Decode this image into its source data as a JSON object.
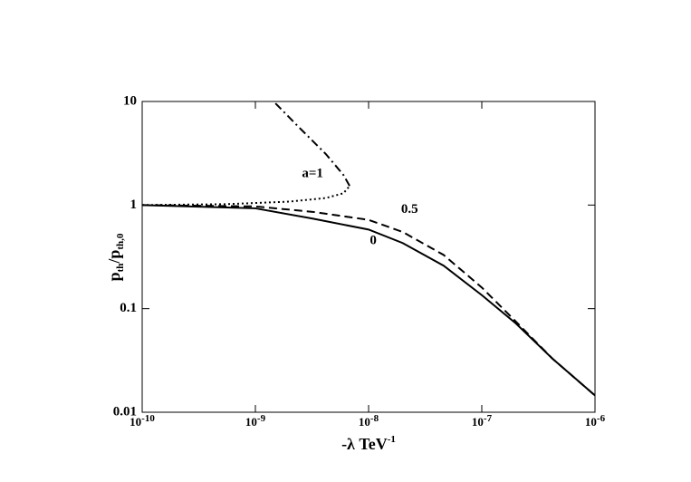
{
  "chart_data": {
    "type": "line",
    "xscale": "log",
    "yscale": "log",
    "xlabel": {
      "text": "-λ TeV",
      "exp": "-1"
    },
    "ylabel": {
      "parts": [
        "p",
        "th",
        "/p",
        "th,0"
      ]
    },
    "xlim": [
      1e-10,
      1e-06
    ],
    "xticks": [
      {
        "value": 1e-10,
        "label": "10",
        "exp": "-10"
      },
      {
        "value": 1e-09,
        "label": "10",
        "exp": "-9"
      },
      {
        "value": 1e-08,
        "label": "10",
        "exp": "-8"
      },
      {
        "value": 1e-07,
        "label": "10",
        "exp": "-7"
      },
      {
        "value": 1e-06,
        "label": "10",
        "exp": "-6"
      }
    ],
    "ylim": [
      0.01,
      10
    ],
    "yticks": [
      0.01,
      0.1,
      1,
      10
    ],
    "series": [
      {
        "color": "#000",
        "dash": "solid",
        "x": [
          1e-10,
          1e-09,
          3.2e-09,
          1e-08,
          2e-08,
          4.6e-08,
          1e-07,
          2e-07,
          4.2e-07,
          1e-06
        ],
        "values": [
          1.0,
          0.93,
          0.74,
          0.58,
          0.43,
          0.26,
          0.135,
          0.072,
          0.033,
          0.0145
        ]
      },
      {
        "color": "#000",
        "dash": "dashed",
        "x": [
          1e-10,
          1e-09,
          3.2e-09,
          1e-08,
          2e-08,
          4.6e-08,
          1e-07,
          2e-07,
          4.2e-07,
          1e-06
        ],
        "values": [
          1.0,
          0.97,
          0.86,
          0.72,
          0.55,
          0.33,
          0.16,
          0.075,
          0.033,
          0.0145
        ]
      },
      {
        "color": "#000",
        "dash": "dotted",
        "x": [
          1e-10,
          5.5e-10,
          2e-09,
          4.2e-09,
          6e-09,
          6.8e-09
        ],
        "values": [
          1.0,
          1.02,
          1.08,
          1.17,
          1.3,
          1.53
        ]
      },
      {
        "color": "#000",
        "dash": "dashdot",
        "x": [
          6.8e-09,
          6e-09,
          4.2e-09,
          2.4e-09,
          1.45e-09
        ],
        "values": [
          1.53,
          1.95,
          3.1,
          5.7,
          10
        ]
      }
    ],
    "annotations": [
      {
        "text": "a=1",
        "x": 3.2e-09,
        "y": 2.0
      },
      {
        "text": "0.5",
        "x": 2.3e-08,
        "y": 0.9
      },
      {
        "text": "0",
        "x": 1.1e-08,
        "y": 0.45
      }
    ]
  }
}
